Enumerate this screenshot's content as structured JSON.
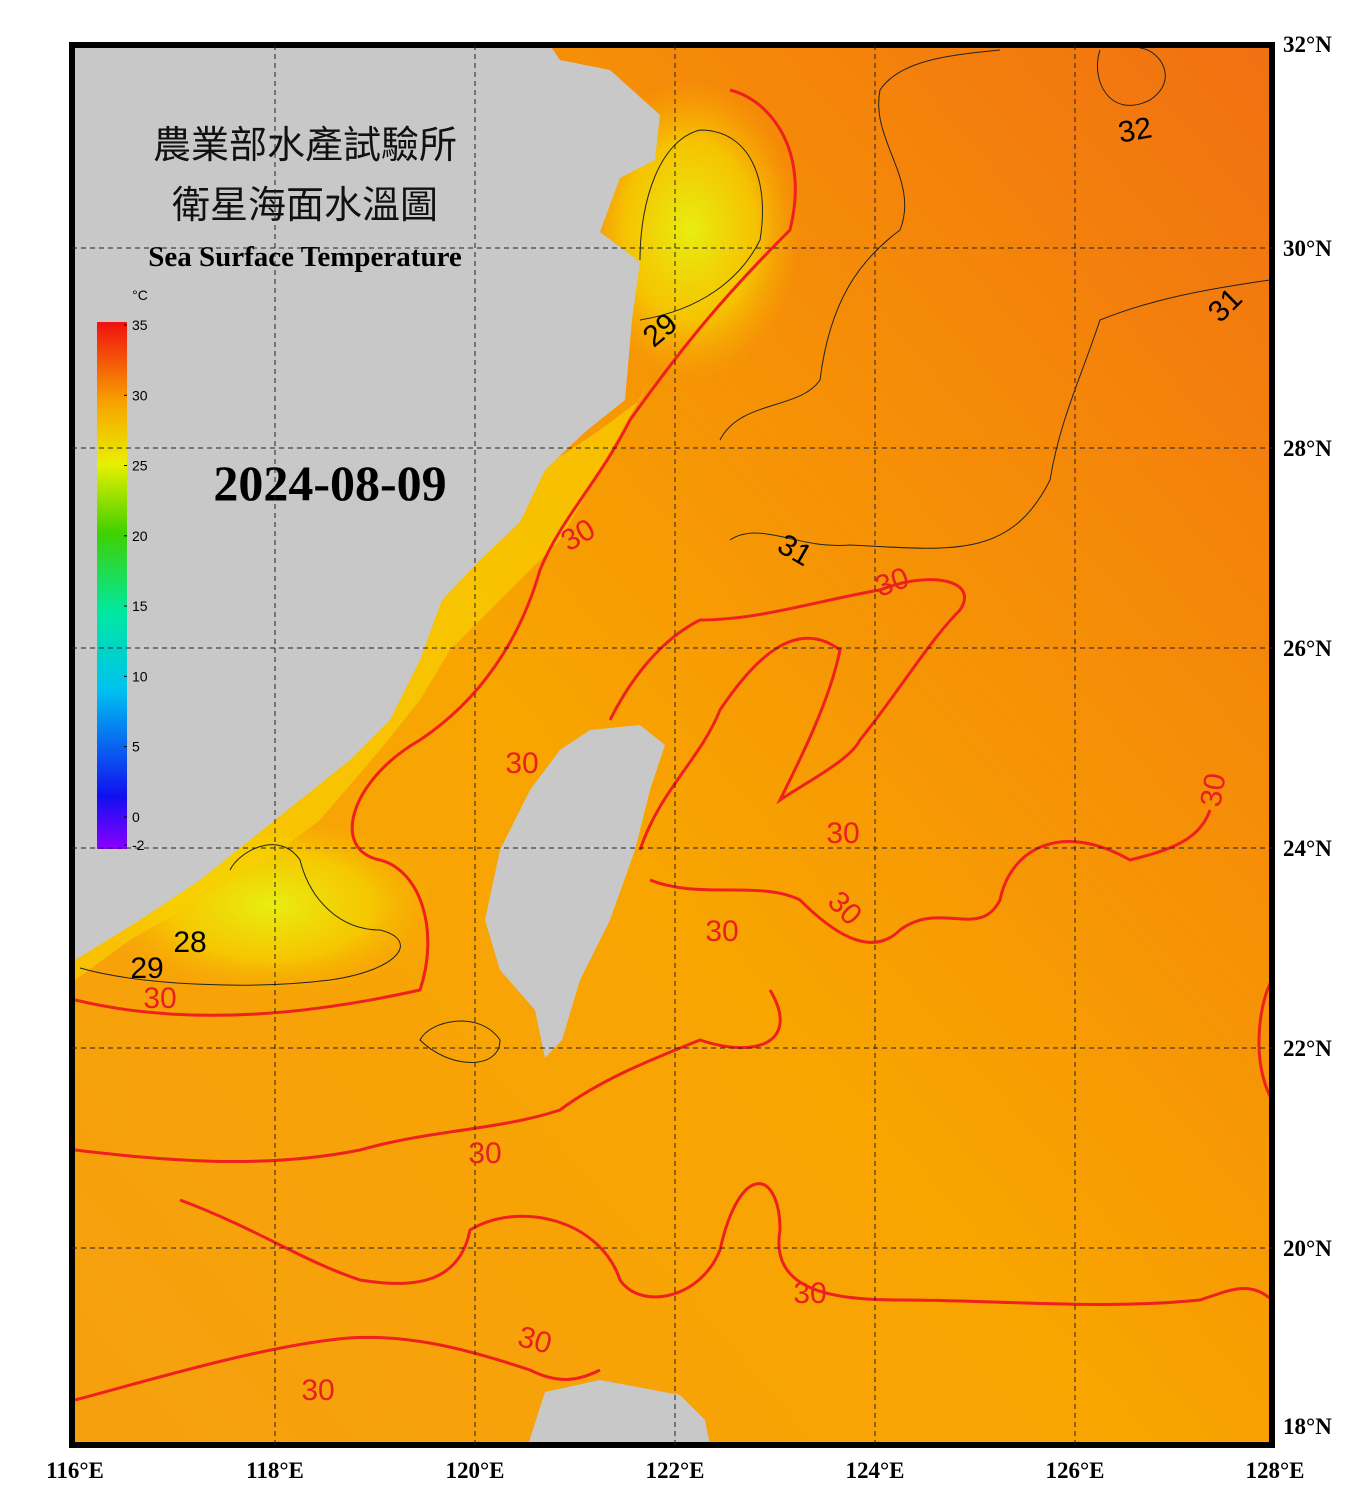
{
  "header": {
    "title_zh_1": "農業部水產試驗所",
    "title_zh_2": "衛星海面水溫圖",
    "title_en": "Sea Surface Temperature",
    "date": "2024-08-09"
  },
  "map": {
    "lon_range": [
      116,
      128
    ],
    "lat_range": [
      18,
      32
    ],
    "lon_ticks": [
      {
        "value": 116,
        "label": "116°E"
      },
      {
        "value": 118,
        "label": "118°E"
      },
      {
        "value": 120,
        "label": "120°E"
      },
      {
        "value": 122,
        "label": "122°E"
      },
      {
        "value": 124,
        "label": "124°E"
      },
      {
        "value": 126,
        "label": "126°E"
      },
      {
        "value": 128,
        "label": "128°E"
      }
    ],
    "lat_ticks": [
      {
        "value": 18,
        "label": "18°N"
      },
      {
        "value": 20,
        "label": "20°N"
      },
      {
        "value": 22,
        "label": "22°N"
      },
      {
        "value": 24,
        "label": "24°N"
      },
      {
        "value": 26,
        "label": "26°N"
      },
      {
        "value": 28,
        "label": "28°N"
      },
      {
        "value": 30,
        "label": "30°N"
      },
      {
        "value": 32,
        "label": "32°N"
      }
    ],
    "contour_labels": [
      32,
      31,
      31,
      29,
      30,
      30,
      30,
      30,
      30,
      30,
      30,
      28,
      29,
      30,
      30,
      30,
      30,
      30
    ]
  },
  "colorbar": {
    "unit": "°C",
    "range": [
      -2,
      35
    ],
    "ticks": [
      35,
      30,
      25,
      20,
      15,
      10,
      5,
      0,
      -2
    ]
  }
}
